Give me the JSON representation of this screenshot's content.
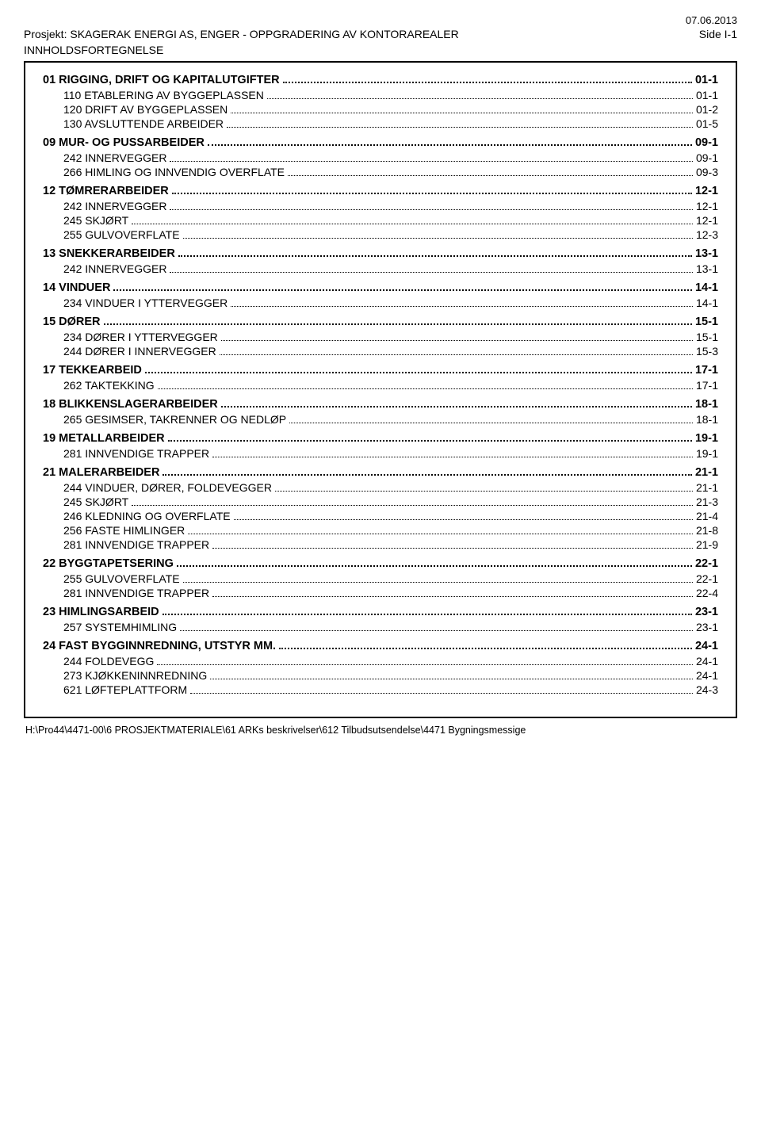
{
  "date": "07.06.2013",
  "project_label": "Prosjekt: SKAGERAK ENERGI AS, ENGER - OPPGRADERING AV KONTORAREALER",
  "side_label": "Side I-1",
  "subtitle": "INNHOLDSFORTEGNELSE",
  "footer": "H:\\Pro44\\4471-00\\6 PROSJEKTMATERIALE\\61 ARKs beskrivelser\\612 Tilbudsutsendelse\\4471 Bygningsmessige",
  "sections": [
    {
      "title": "01 RIGGING, DRIFT OG KAPITALUTGIFTER",
      "page": "01-1",
      "items": [
        {
          "label": "110 ETABLERING AV BYGGEPLASSEN",
          "page": "01-1"
        },
        {
          "label": "120 DRIFT AV BYGGEPLASSEN",
          "page": "01-2"
        },
        {
          "label": "130 AVSLUTTENDE ARBEIDER",
          "page": "01-5"
        }
      ]
    },
    {
      "title": "09 MUR- OG PUSSARBEIDER",
      "page": "09-1",
      "items": [
        {
          "label": "242 INNERVEGGER",
          "page": "09-1"
        },
        {
          "label": "266 HIMLING OG INNVENDIG OVERFLATE",
          "page": "09-3"
        }
      ]
    },
    {
      "title": "12 TØMRERARBEIDER",
      "page": "12-1",
      "items": [
        {
          "label": "242 INNERVEGGER",
          "page": "12-1"
        },
        {
          "label": "245 SKJØRT",
          "page": "12-1"
        },
        {
          "label": "255 GULVOVERFLATE",
          "page": "12-3"
        }
      ]
    },
    {
      "title": "13 SNEKKERARBEIDER",
      "page": "13-1",
      "items": [
        {
          "label": "242 INNERVEGGER",
          "page": "13-1"
        }
      ]
    },
    {
      "title": "14 VINDUER",
      "page": "14-1",
      "items": [
        {
          "label": "234 VINDUER I YTTERVEGGER",
          "page": "14-1"
        }
      ]
    },
    {
      "title": "15 DØRER",
      "page": "15-1",
      "items": [
        {
          "label": "234 DØRER I YTTERVEGGER",
          "page": "15-1"
        },
        {
          "label": "244 DØRER I INNERVEGGER",
          "page": "15-3"
        }
      ]
    },
    {
      "title": "17 TEKKEARBEID",
      "page": "17-1",
      "items": [
        {
          "label": "262 TAKTEKKING",
          "page": "17-1"
        }
      ]
    },
    {
      "title": "18 BLIKKENSLAGERARBEIDER",
      "page": "18-1",
      "items": [
        {
          "label": "265 GESIMSER, TAKRENNER OG NEDLØP",
          "page": "18-1"
        }
      ]
    },
    {
      "title": "19 METALLARBEIDER",
      "page": "19-1",
      "items": [
        {
          "label": "281 INNVENDIGE TRAPPER",
          "page": "19-1"
        }
      ]
    },
    {
      "title": "21 MALERARBEIDER",
      "page": "21-1",
      "items": [
        {
          "label": "244 VINDUER, DØRER, FOLDEVEGGER",
          "page": "21-1"
        },
        {
          "label": "245 SKJØRT",
          "page": "21-3"
        },
        {
          "label": "246 KLEDNING OG OVERFLATE",
          "page": "21-4"
        },
        {
          "label": "256 FASTE HIMLINGER",
          "page": "21-8"
        },
        {
          "label": "281 INNVENDIGE TRAPPER",
          "page": "21-9"
        }
      ]
    },
    {
      "title": "22 BYGGTAPETSERING",
      "page": "22-1",
      "items": [
        {
          "label": "255 GULVOVERFLATE",
          "page": "22-1"
        },
        {
          "label": "281 INNVENDIGE TRAPPER",
          "page": "22-4"
        }
      ]
    },
    {
      "title": "23 HIMLINGSARBEID",
      "page": "23-1",
      "items": [
        {
          "label": "257 SYSTEMHIMLING",
          "page": "23-1"
        }
      ]
    },
    {
      "title": "24 FAST BYGGINNREDNING, UTSTYR MM.",
      "page": "24-1",
      "items": [
        {
          "label": "244 FOLDEVEGG",
          "page": "24-1"
        },
        {
          "label": "273 KJØKKENINNREDNING",
          "page": "24-1"
        },
        {
          "label": "621 LØFTEPLATTFORM",
          "page": "24-3"
        }
      ]
    }
  ]
}
